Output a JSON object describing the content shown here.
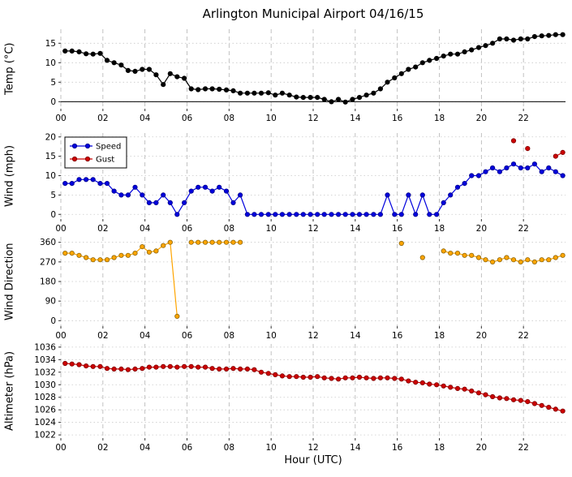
{
  "chart_data": {
    "type": "line",
    "title": "Arlington Municipal Airport 04/16/15",
    "xlabel": "Hour (UTC)",
    "xlim": [
      0,
      24
    ],
    "xticks": [
      0,
      2,
      4,
      6,
      8,
      10,
      12,
      14,
      16,
      18,
      20,
      22
    ],
    "xtick_labels": [
      "00",
      "02",
      "04",
      "06",
      "08",
      "10",
      "12",
      "14",
      "16",
      "18",
      "20",
      "22"
    ],
    "grid": true,
    "x": [
      0.2,
      0.53,
      0.87,
      1.2,
      1.53,
      1.87,
      2.2,
      2.53,
      2.87,
      3.2,
      3.53,
      3.87,
      4.2,
      4.53,
      4.87,
      5.2,
      5.53,
      5.87,
      6.2,
      6.53,
      6.87,
      7.2,
      7.53,
      7.87,
      8.2,
      8.53,
      8.87,
      9.2,
      9.53,
      9.87,
      10.2,
      10.53,
      10.87,
      11.2,
      11.53,
      11.87,
      12.2,
      12.53,
      12.87,
      13.2,
      13.53,
      13.87,
      14.2,
      14.53,
      14.87,
      15.2,
      15.53,
      15.87,
      16.2,
      16.53,
      16.87,
      17.2,
      17.53,
      17.87,
      18.2,
      18.53,
      18.87,
      19.2,
      19.53,
      19.87,
      20.2,
      20.53,
      20.87,
      21.2,
      21.53,
      21.87,
      22.2,
      22.53,
      22.87,
      23.2,
      23.53,
      23.87
    ],
    "panels": [
      {
        "id": "temp",
        "ylabel": "Temp (°C)",
        "ylim": [
          -1.8,
          18.6
        ],
        "yticks": [
          0,
          5,
          10,
          15
        ],
        "zero_line": true,
        "legend": false,
        "series": [
          {
            "name": "Temp",
            "color": "#000000",
            "edge": "#000000",
            "values": [
              13,
              13,
              12.8,
              12.3,
              12.2,
              12.4,
              10.6,
              10,
              9.4,
              8,
              7.8,
              8.3,
              8.3,
              6.9,
              4.4,
              7.2,
              6.4,
              6,
              3.3,
              3.1,
              3.3,
              3.3,
              3.2,
              3,
              2.8,
              2.2,
              2.2,
              2.2,
              2.2,
              2.3,
              1.7,
              2.2,
              1.7,
              1.2,
              1.1,
              1.1,
              1.1,
              0.6,
              0,
              0.6,
              -0.1,
              0.6,
              1.1,
              1.7,
              2.2,
              3.3,
              5,
              6.1,
              7.2,
              8.3,
              8.9,
              10,
              10.6,
              11.1,
              11.7,
              12.2,
              12.2,
              12.8,
              13.3,
              13.9,
              14.4,
              15,
              16.1,
              16.1,
              15.8,
              16.1,
              16.1,
              16.7,
              16.9,
              17,
              17.2,
              17.2
            ]
          }
        ]
      },
      {
        "id": "wind",
        "ylabel": "Wind (mph)",
        "ylim": [
          -1.2,
          21
        ],
        "yticks": [
          0,
          5,
          10,
          15,
          20
        ],
        "zero_line": false,
        "legend": true,
        "series": [
          {
            "name": "Speed",
            "color": "#0000dd",
            "edge": "#00008b",
            "values": [
              8,
              8,
              9,
              9,
              9,
              8,
              8,
              6,
              5,
              5,
              7,
              5,
              3,
              3,
              5,
              3,
              0,
              3,
              6,
              7,
              7,
              6,
              7,
              6,
              3,
              5,
              0,
              0,
              0,
              0,
              0,
              0,
              0,
              0,
              0,
              0,
              0,
              0,
              0,
              0,
              0,
              0,
              0,
              0,
              0,
              0,
              5,
              0,
              0,
              5,
              0,
              5,
              0,
              0,
              3,
              5,
              7,
              8,
              10,
              10,
              11,
              12,
              11,
              12,
              13,
              12,
              12,
              13,
              11,
              12,
              11,
              10
            ]
          },
          {
            "name": "Gust",
            "color": "#cc0000",
            "edge": "#7f0000",
            "values": [
              null,
              null,
              null,
              null,
              null,
              null,
              null,
              null,
              null,
              null,
              null,
              null,
              null,
              null,
              null,
              null,
              null,
              null,
              null,
              null,
              null,
              null,
              null,
              null,
              null,
              null,
              null,
              null,
              null,
              null,
              null,
              null,
              null,
              null,
              null,
              null,
              null,
              null,
              null,
              null,
              null,
              null,
              null,
              null,
              null,
              null,
              null,
              null,
              null,
              null,
              null,
              null,
              null,
              null,
              null,
              null,
              null,
              null,
              null,
              null,
              null,
              null,
              null,
              null,
              19,
              null,
              17,
              null,
              null,
              null,
              15,
              16
            ]
          }
        ]
      },
      {
        "id": "wind-direction",
        "ylabel": "Wind Direction",
        "ylim": [
          -25,
          385
        ],
        "yticks": [
          0,
          90,
          180,
          270,
          360
        ],
        "zero_line": false,
        "legend": false,
        "series": [
          {
            "name": "Direction",
            "color": "#ffa500",
            "edge": "#8b6508",
            "values": [
              310,
              310,
              300,
              290,
              280,
              280,
              280,
              290,
              300,
              300,
              310,
              340,
              315,
              320,
              345,
              360,
              20,
              null,
              360,
              360,
              360,
              360,
              360,
              360,
              360,
              360,
              null,
              null,
              null,
              null,
              null,
              null,
              null,
              null,
              null,
              null,
              null,
              null,
              null,
              null,
              null,
              null,
              null,
              null,
              null,
              null,
              null,
              null,
              355,
              null,
              null,
              290,
              null,
              null,
              320,
              310,
              310,
              300,
              300,
              290,
              280,
              270,
              280,
              290,
              280,
              270,
              280,
              270,
              280,
              280,
              290,
              300
            ]
          }
        ]
      },
      {
        "id": "altimeter",
        "ylabel": "Altimeter (hPa)",
        "ylim": [
          1021.5,
          1036.5
        ],
        "yticks": [
          1022,
          1024,
          1026,
          1028,
          1030,
          1032,
          1034,
          1036
        ],
        "zero_line": false,
        "legend": false,
        "series": [
          {
            "name": "Altimeter",
            "color": "#cc0000",
            "edge": "#7f0000",
            "values": [
              1033.4,
              1033.3,
              1033.2,
              1033,
              1032.9,
              1032.9,
              1032.6,
              1032.5,
              1032.5,
              1032.4,
              1032.5,
              1032.6,
              1032.8,
              1032.8,
              1032.9,
              1032.9,
              1032.8,
              1032.9,
              1032.9,
              1032.8,
              1032.8,
              1032.6,
              1032.5,
              1032.5,
              1032.6,
              1032.5,
              1032.5,
              1032.4,
              1032,
              1031.8,
              1031.6,
              1031.4,
              1031.3,
              1031.3,
              1031.2,
              1031.2,
              1031.3,
              1031.1,
              1031,
              1030.9,
              1031.1,
              1031.1,
              1031.2,
              1031.1,
              1031,
              1031.1,
              1031.1,
              1031,
              1030.9,
              1030.6,
              1030.4,
              1030.3,
              1030.1,
              1030,
              1029.8,
              1029.6,
              1029.4,
              1029.3,
              1029,
              1028.7,
              1028.4,
              1028.1,
              1027.9,
              1027.8,
              1027.6,
              1027.5,
              1027.3,
              1027,
              1026.7,
              1026.4,
              1026.1,
              1025.8
            ]
          }
        ]
      }
    ]
  }
}
